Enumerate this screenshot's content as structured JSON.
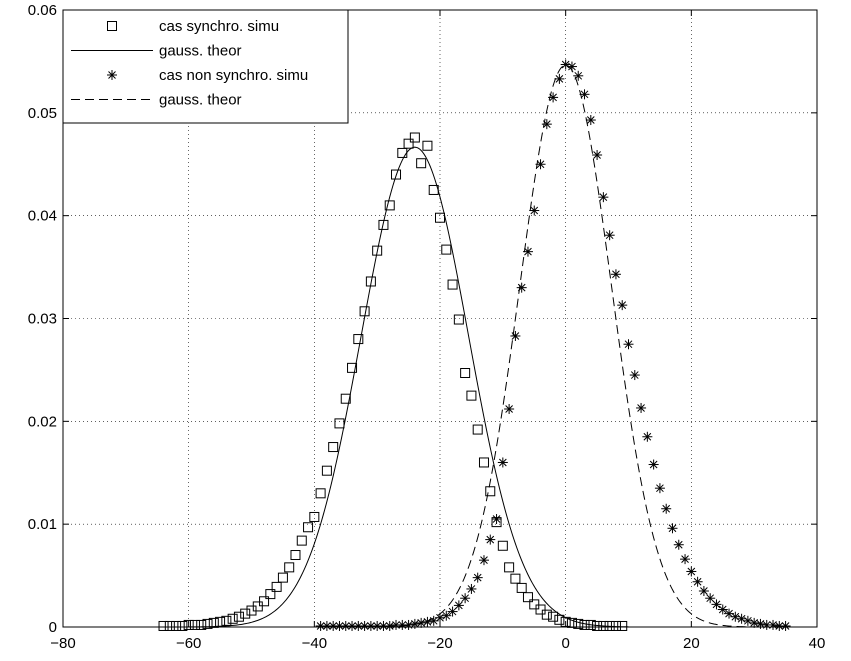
{
  "chart_data": {
    "type": "line",
    "title": "",
    "xlabel": "",
    "ylabel": "",
    "xlim": [
      -80,
      40
    ],
    "ylim": [
      0,
      0.06
    ],
    "xticks": [
      -80,
      -60,
      -40,
      -20,
      0,
      20,
      40
    ],
    "yticks": [
      0,
      0.01,
      0.02,
      0.03,
      0.04,
      0.05,
      0.06
    ],
    "xtick_labels": [
      "−80",
      "−60",
      "−40",
      "−20",
      "0",
      "20",
      "40"
    ],
    "ytick_labels": [
      "0",
      "0.01",
      "0.02",
      "0.03",
      "0.04",
      "0.05",
      "0.06"
    ],
    "grid": true,
    "legend_position": "top-left",
    "series": [
      {
        "name": "cas synchro. simu",
        "style": "square-markers",
        "color": "#000000",
        "x": [
          -64,
          -63,
          -62,
          -61,
          -60,
          -59,
          -58,
          -57,
          -56,
          -55,
          -54,
          -53,
          -52,
          -51,
          -50,
          -49,
          -48,
          -47,
          -46,
          -45,
          -44,
          -43,
          -42,
          -41,
          -40,
          -39,
          -38,
          -37,
          -36,
          -35,
          -34,
          -33,
          -32,
          -31,
          -30,
          -29,
          -28,
          -27,
          -26,
          -25,
          -24,
          -23,
          -22,
          -21,
          -20,
          -19,
          -18,
          -17,
          -16,
          -15,
          -14,
          -13,
          -12,
          -11,
          -10,
          -9,
          -8,
          -7,
          -6,
          -5,
          -4,
          -3,
          -2,
          -1,
          0,
          1,
          2,
          3,
          4,
          5,
          6,
          7,
          8,
          9
        ],
        "y": [
          0.0001,
          0.0001,
          0.0001,
          0.0001,
          0.0002,
          0.0002,
          0.0002,
          0.0003,
          0.0004,
          0.0005,
          0.0006,
          0.0008,
          0.001,
          0.0013,
          0.0016,
          0.002,
          0.0025,
          0.0032,
          0.0039,
          0.0048,
          0.0058,
          0.007,
          0.0084,
          0.0097,
          0.0107,
          0.013,
          0.0152,
          0.0175,
          0.0198,
          0.0222,
          0.0252,
          0.028,
          0.0307,
          0.0336,
          0.0366,
          0.0391,
          0.041,
          0.044,
          0.0461,
          0.047,
          0.0476,
          0.0451,
          0.0468,
          0.0425,
          0.0398,
          0.0367,
          0.0333,
          0.0299,
          0.0247,
          0.0225,
          0.0192,
          0.016,
          0.0132,
          0.0102,
          0.0079,
          0.0058,
          0.0047,
          0.0038,
          0.0029,
          0.0022,
          0.0017,
          0.0012,
          0.001,
          0.0007,
          0.0005,
          0.0004,
          0.0003,
          0.0002,
          0.0002,
          0.0001,
          0.0001,
          0.0001,
          0.0001,
          0.0001
        ]
      },
      {
        "name": "gauss. theor",
        "style": "solid",
        "color": "#000000",
        "mu": -24,
        "sigma": 8.55,
        "x_range": [
          -64,
          10
        ]
      },
      {
        "name": "cas non synchro. simu",
        "style": "star-markers",
        "color": "#000000",
        "x": [
          -39,
          -38,
          -37,
          -36,
          -35,
          -34,
          -33,
          -32,
          -31,
          -30,
          -29,
          -28,
          -27,
          -26,
          -25,
          -24,
          -23,
          -22,
          -21,
          -20,
          -19,
          -18,
          -17,
          -16,
          -15,
          -14,
          -13,
          -12,
          -11,
          -10,
          -9,
          -8,
          -7,
          -6,
          -5,
          -4,
          -3,
          -2,
          -1,
          0,
          1,
          2,
          3,
          4,
          5,
          6,
          7,
          8,
          9,
          10,
          11,
          12,
          13,
          14,
          15,
          16,
          17,
          18,
          19,
          20,
          21,
          22,
          23,
          24,
          25,
          26,
          27,
          28,
          29,
          30,
          31,
          32,
          33,
          34,
          35
        ],
        "y": [
          0.0001,
          0.0001,
          0.0001,
          0.0001,
          0.0001,
          0.0001,
          0.0001,
          0.0001,
          0.0001,
          0.0001,
          0.0001,
          0.0001,
          0.0002,
          0.0002,
          0.0002,
          0.0003,
          0.0004,
          0.0005,
          0.0006,
          0.0009,
          0.0011,
          0.0015,
          0.0021,
          0.0028,
          0.0037,
          0.0048,
          0.0065,
          0.0085,
          0.0105,
          0.016,
          0.0212,
          0.0283,
          0.033,
          0.0365,
          0.0405,
          0.045,
          0.0489,
          0.0515,
          0.0533,
          0.0547,
          0.0545,
          0.0536,
          0.0518,
          0.0493,
          0.0459,
          0.0418,
          0.0381,
          0.0343,
          0.0313,
          0.0275,
          0.0245,
          0.0213,
          0.0185,
          0.0158,
          0.0135,
          0.0115,
          0.0096,
          0.008,
          0.0066,
          0.0054,
          0.0044,
          0.0035,
          0.0028,
          0.0022,
          0.0017,
          0.0013,
          0.001,
          0.0008,
          0.0006,
          0.0004,
          0.0003,
          0.0002,
          0.0002,
          0.0001,
          0.0001
        ]
      },
      {
        "name": "gauss. theor",
        "style": "dashed",
        "color": "#000000",
        "mu": 0,
        "sigma": 7.3,
        "x_range": [
          -40,
          36
        ]
      }
    ]
  }
}
